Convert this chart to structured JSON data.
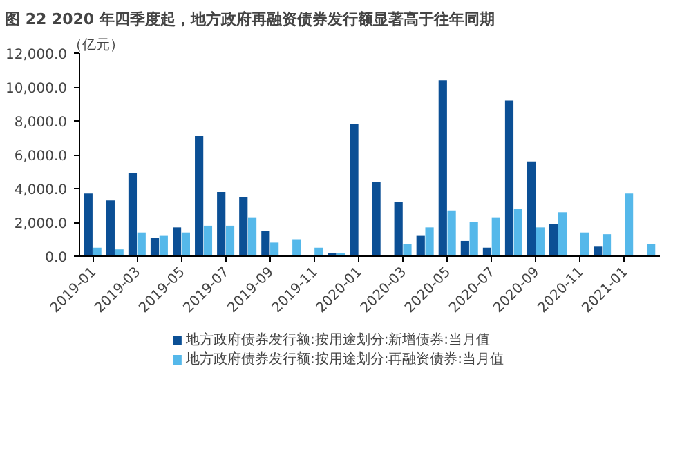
{
  "chart_data": {
    "type": "bar",
    "title": "图 22 2020 年四季度起，地方政府再融资债券发行额显著高于往年同期",
    "ylabel": "（亿元）",
    "categories": [
      "2019-01",
      null,
      "2019-03",
      null,
      "2019-05",
      null,
      "2019-07",
      null,
      "2019-09",
      null,
      "2019-11",
      null,
      "2020-01",
      null,
      "2020-03",
      null,
      "2020-05",
      null,
      "2020-07",
      null,
      "2020-09",
      null,
      "2020-11",
      null,
      "2021-01",
      null
    ],
    "series": [
      {
        "name": "地方政府债券发行额:按用途划分:新增债券:当月值",
        "color": "#0b4f95",
        "values": [
          3700,
          3300,
          4900,
          1100,
          1700,
          7100,
          3800,
          3500,
          1500,
          0,
          0,
          200,
          7800,
          4400,
          3200,
          1200,
          10400,
          900,
          500,
          9200,
          5600,
          1900,
          0,
          600,
          0,
          0
        ]
      },
      {
        "name": "地方政府债券发行额:按用途划分:再融资债券:当月值",
        "color": "#55b8ea",
        "values": [
          500,
          400,
          1400,
          1200,
          1400,
          1800,
          1800,
          2300,
          800,
          1000,
          500,
          200,
          0,
          0,
          700,
          1700,
          2700,
          2000,
          2300,
          2800,
          1700,
          2600,
          1400,
          1300,
          3700,
          700
        ]
      }
    ],
    "ylim": [
      0,
      12000
    ],
    "yticks": [
      {
        "value": 0,
        "label": "0.0"
      },
      {
        "value": 2000,
        "label": "2,000.0"
      },
      {
        "value": 4000,
        "label": "4,000.0"
      },
      {
        "value": 6000,
        "label": "6,000.0"
      },
      {
        "value": 8000,
        "label": "8,000.0"
      },
      {
        "value": 10000,
        "label": "10,000.0"
      },
      {
        "value": 12000,
        "label": "12,000.0"
      }
    ],
    "grid": false,
    "legend": "bottom"
  }
}
